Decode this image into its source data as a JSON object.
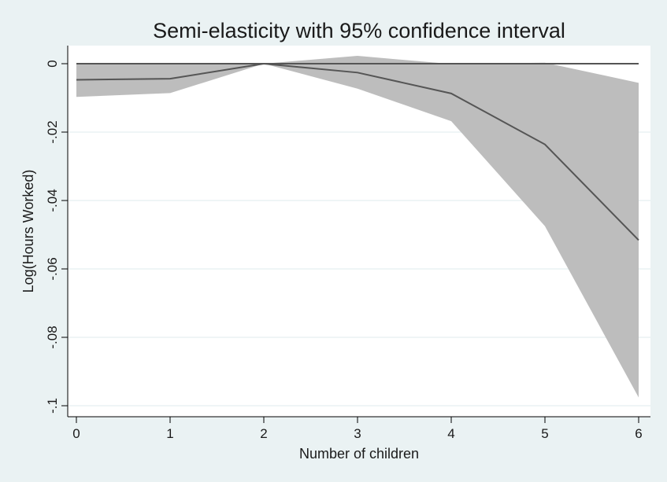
{
  "chart_data": {
    "type": "area",
    "title": "Semi-elasticity with 95% confidence interval",
    "xlabel": "Number of children",
    "ylabel": "Log(Hours Worked)",
    "xlim": [
      0,
      6
    ],
    "ylim": [
      -0.1,
      0
    ],
    "x": [
      0,
      1,
      2,
      3,
      4,
      5,
      6
    ],
    "x_tick_labels": [
      "0",
      "1",
      "2",
      "3",
      "4",
      "5",
      "6"
    ],
    "y_ticks": [
      0,
      -0.02,
      -0.04,
      -0.06,
      -0.08,
      -0.1
    ],
    "y_tick_labels": [
      "0",
      "-.02",
      "-.04",
      "-.06",
      "-.08",
      "-.1"
    ],
    "grid": true,
    "series": [
      {
        "role": "estimate",
        "values": [
          -0.0047,
          -0.0044,
          0,
          -0.0026,
          -0.0087,
          -0.0236,
          -0.0516
        ]
      },
      {
        "role": "ci_upper",
        "values": [
          0.0002,
          -0.0001,
          0,
          0.0023,
          -0.0001,
          0.0003,
          -0.0056
        ]
      },
      {
        "role": "ci_lower",
        "values": [
          -0.0097,
          -0.0086,
          0,
          -0.0073,
          -0.0168,
          -0.0475,
          -0.0976
        ]
      },
      {
        "role": "reference",
        "values": [
          0,
          0,
          0,
          0,
          0,
          0,
          0
        ]
      }
    ],
    "colors": {
      "background": "#eaf2f3",
      "plot_area": "#ffffff",
      "grid": "#eaf2f3",
      "ci_band": "#bdbdbd",
      "line": "#555555"
    }
  }
}
